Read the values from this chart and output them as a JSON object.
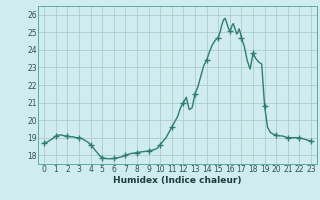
{
  "x": [
    0,
    0.25,
    0.5,
    0.75,
    1,
    1.25,
    1.5,
    1.75,
    2,
    2.25,
    2.5,
    2.75,
    3,
    3.25,
    3.5,
    3.75,
    4,
    4.25,
    4.5,
    4.75,
    5,
    5.25,
    5.5,
    5.75,
    6,
    6.25,
    6.5,
    6.75,
    7,
    7.25,
    7.5,
    7.75,
    8,
    8.25,
    8.5,
    8.75,
    9,
    9.25,
    9.5,
    9.75,
    10,
    10.25,
    10.5,
    10.75,
    11,
    11.25,
    11.5,
    11.75,
    12,
    12.25,
    12.5,
    12.75,
    13,
    13.25,
    13.5,
    13.75,
    14,
    14.25,
    14.5,
    14.75,
    15,
    15.1,
    15.2,
    15.3,
    15.4,
    15.5,
    15.6,
    15.7,
    15.8,
    15.9,
    16,
    16.1,
    16.2,
    16.3,
    16.4,
    16.5,
    16.6,
    16.7,
    16.8,
    16.9,
    17,
    17.25,
    17.5,
    17.75,
    18,
    18.25,
    18.5,
    18.75,
    19,
    19.25,
    19.5,
    19.75,
    20,
    20.25,
    20.5,
    20.75,
    21,
    21.25,
    21.5,
    21.75,
    22,
    22.25,
    22.5,
    22.75,
    23
  ],
  "y": [
    18.7,
    18.75,
    18.85,
    18.95,
    19.1,
    19.15,
    19.15,
    19.1,
    19.1,
    19.05,
    19.05,
    19.0,
    19.0,
    18.95,
    18.85,
    18.75,
    18.6,
    18.4,
    18.2,
    18.0,
    17.85,
    17.82,
    17.8,
    17.8,
    17.82,
    17.85,
    17.88,
    17.92,
    18.0,
    18.05,
    18.1,
    18.12,
    18.15,
    18.18,
    18.2,
    18.22,
    18.25,
    18.28,
    18.32,
    18.4,
    18.6,
    18.8,
    19.0,
    19.3,
    19.6,
    19.9,
    20.2,
    20.7,
    21.0,
    21.3,
    20.6,
    20.7,
    21.5,
    21.9,
    22.5,
    23.1,
    23.4,
    23.9,
    24.3,
    24.55,
    24.7,
    24.9,
    25.1,
    25.4,
    25.6,
    25.75,
    25.8,
    25.6,
    25.4,
    25.2,
    25.1,
    25.2,
    25.4,
    25.5,
    25.3,
    25.1,
    24.9,
    25.0,
    25.2,
    25.0,
    24.7,
    24.2,
    23.4,
    22.9,
    23.8,
    23.5,
    23.3,
    23.2,
    20.8,
    19.6,
    19.3,
    19.2,
    19.15,
    19.1,
    19.1,
    19.05,
    19.0,
    19.0,
    19.0,
    19.0,
    19.0,
    18.95,
    18.9,
    18.85,
    18.8
  ],
  "marker_x": [
    0,
    1,
    2,
    3,
    4,
    5,
    6,
    7,
    8,
    9,
    10,
    11,
    12,
    13,
    14,
    15,
    16,
    17,
    18,
    19,
    20,
    21,
    22,
    23
  ],
  "marker_y": [
    18.7,
    19.1,
    19.1,
    19.0,
    18.6,
    17.85,
    17.82,
    18.0,
    18.15,
    18.25,
    18.6,
    19.6,
    21.0,
    21.5,
    23.4,
    24.7,
    25.1,
    24.7,
    23.8,
    20.8,
    19.15,
    19.0,
    19.0,
    18.8
  ],
  "line_color": "#2e7d6e",
  "bg_color": "#d0ecee",
  "grid_color": "#aacfcc",
  "xlabel": "Humidex (Indice chaleur)",
  "ylim": [
    17.5,
    26.5
  ],
  "xlim": [
    -0.5,
    23.5
  ],
  "yticks": [
    18,
    19,
    20,
    21,
    22,
    23,
    24,
    25,
    26
  ],
  "xticks": [
    0,
    1,
    2,
    3,
    4,
    5,
    6,
    7,
    8,
    9,
    10,
    11,
    12,
    13,
    14,
    15,
    16,
    17,
    18,
    19,
    20,
    21,
    22,
    23
  ]
}
